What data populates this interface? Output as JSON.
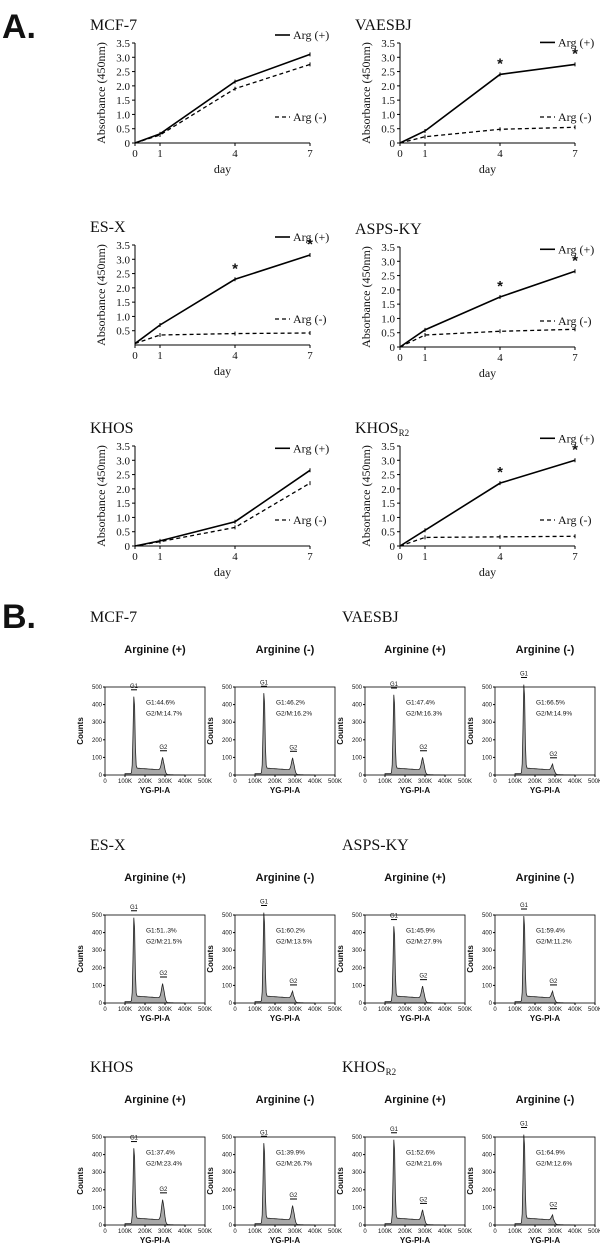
{
  "panel_a_label": "A.",
  "panel_b_label": "B.",
  "chart_data": [
    {
      "type": "line",
      "title": "MCF-7",
      "xlabel": "day",
      "ylabel": "Absorbance (450nm)",
      "x": [
        0,
        1,
        4,
        7
      ],
      "xticks": [
        "0",
        "1",
        "4",
        "7"
      ],
      "ylim": [
        0,
        3.5
      ],
      "yticks": [
        "0",
        "0.5",
        "1.0",
        "1.5",
        "2.0",
        "2.5",
        "3.0",
        "3.5"
      ],
      "series": [
        {
          "name": "Arg (+)",
          "style": "solid",
          "values": [
            0,
            0.32,
            2.15,
            3.1
          ]
        },
        {
          "name": "Arg (-)",
          "style": "dashed",
          "values": [
            0,
            0.28,
            1.9,
            2.75
          ]
        }
      ],
      "significant_days": []
    },
    {
      "type": "line",
      "title": "VAESBJ",
      "xlabel": "day",
      "ylabel": "Absorbance (450nm)",
      "x": [
        0,
        1,
        4,
        7
      ],
      "xticks": [
        "0",
        "1",
        "4",
        "7"
      ],
      "ylim": [
        0,
        3.5
      ],
      "yticks": [
        "0",
        "0.5",
        "1.0",
        "1.5",
        "2.0",
        "2.5",
        "3.0",
        "3.5"
      ],
      "series": [
        {
          "name": "Arg (+)",
          "style": "solid",
          "values": [
            0,
            0.42,
            2.4,
            2.75
          ]
        },
        {
          "name": "Arg (-)",
          "style": "dashed",
          "values": [
            0,
            0.22,
            0.48,
            0.55
          ]
        }
      ],
      "significant_days": [
        4,
        7
      ],
      "significance_mark": "*"
    },
    {
      "type": "line",
      "title": "ES-X",
      "xlabel": "day",
      "ylabel": "Absorbance (450nm)",
      "x": [
        0,
        1,
        4,
        7
      ],
      "xticks": [
        "0",
        "1",
        "4",
        "7"
      ],
      "ylim": [
        0,
        3.5
      ],
      "yticks": [
        "0.5",
        "1.0",
        "1.5",
        "2.0",
        "2.5",
        "3.0",
        "3.5"
      ],
      "series": [
        {
          "name": "Arg (+)",
          "style": "solid",
          "values": [
            0.05,
            0.7,
            2.3,
            3.15
          ]
        },
        {
          "name": "Arg (-)",
          "style": "dashed",
          "values": [
            0.05,
            0.35,
            0.4,
            0.42
          ]
        }
      ],
      "significant_days": [
        4,
        7
      ],
      "significance_mark": "*"
    },
    {
      "type": "line",
      "title": "ASPS-KY",
      "xlabel": "day",
      "ylabel": "Absorbance (450nm)",
      "x": [
        0,
        1,
        4,
        7
      ],
      "xticks": [
        "0",
        "1",
        "4",
        "7"
      ],
      "ylim": [
        0,
        3.5
      ],
      "yticks": [
        "0",
        "0.5",
        "1.0",
        "1.5",
        "2.0",
        "2.5",
        "3.0",
        "3.5"
      ],
      "series": [
        {
          "name": "Arg (+)",
          "style": "solid",
          "values": [
            0,
            0.6,
            1.75,
            2.65
          ]
        },
        {
          "name": "Arg (-)",
          "style": "dashed",
          "values": [
            0,
            0.42,
            0.55,
            0.62
          ]
        }
      ],
      "significant_days": [
        4,
        7
      ],
      "significance_mark": "*"
    },
    {
      "type": "line",
      "title": "KHOS",
      "xlabel": "day",
      "ylabel": "Absorbance (450nm)",
      "x": [
        0,
        1,
        4,
        7
      ],
      "xticks": [
        "0",
        "1",
        "4",
        "7"
      ],
      "ylim": [
        0,
        3.5
      ],
      "yticks": [
        "0",
        "0.5",
        "1.0",
        "1.5",
        "2.0",
        "2.5",
        "3.0",
        "3.5"
      ],
      "series": [
        {
          "name": "Arg (+)",
          "style": "solid",
          "values": [
            0,
            0.18,
            0.85,
            2.65
          ]
        },
        {
          "name": "Arg (-)",
          "style": "dashed",
          "values": [
            0,
            0.15,
            0.65,
            2.2
          ]
        }
      ],
      "significant_days": []
    },
    {
      "type": "line",
      "title": "KHOS",
      "title_sub": "R2",
      "xlabel": "day",
      "ylabel": "Absorbance (450nm)",
      "x": [
        0,
        1,
        4,
        7
      ],
      "xticks": [
        "0",
        "1",
        "4",
        "7"
      ],
      "ylim": [
        0,
        3.5
      ],
      "yticks": [
        "0",
        "0.5",
        "1.0",
        "1.5",
        "2.0",
        "2.5",
        "3.0",
        "3.5"
      ],
      "series": [
        {
          "name": "Arg (+)",
          "style": "solid",
          "values": [
            0,
            0.55,
            2.2,
            3.0
          ]
        },
        {
          "name": "Arg (-)",
          "style": "dashed",
          "values": [
            0,
            0.3,
            0.32,
            0.34
          ]
        }
      ],
      "significant_days": [
        4,
        7
      ],
      "significance_mark": "*"
    }
  ],
  "histograms": {
    "xlabel": "YG-PI-A",
    "ylabel": "Counts",
    "xticks": [
      "0",
      "100K",
      "200K",
      "300K",
      "400K",
      "500K"
    ],
    "yticks": [
      "0",
      "100",
      "200",
      "300",
      "400",
      "500"
    ],
    "g1_label": "G1",
    "g2_label": "G2",
    "groups": [
      {
        "cell": "MCF-7",
        "sub": "",
        "panels": [
          {
            "condition": "Arginine (+)",
            "g1": "G1:44.6%",
            "g2m": "G2/M:14.7%",
            "g1_peak": 450,
            "g2_peak": 75
          },
          {
            "condition": "Arginine (-)",
            "g1": "G1:46.2%",
            "g2m": "G2/M:16.2%",
            "g1_peak": 470,
            "g2_peak": 72
          }
        ]
      },
      {
        "cell": "VAESBJ",
        "sub": "",
        "panels": [
          {
            "condition": "Arginine (+)",
            "g1": "G1:47.4%",
            "g2m": "G2/M:16.3%",
            "g1_peak": 460,
            "g2_peak": 75
          },
          {
            "condition": "Arginine (-)",
            "g1": "G1:66.5%",
            "g2m": "G2/M:14.9%",
            "g1_peak": 520,
            "g2_peak": 35
          }
        ]
      },
      {
        "cell": "ES-X",
        "sub": "",
        "panels": [
          {
            "condition": "Arginine (+)",
            "g1": "G1:51..3%",
            "g2m": "G2/M:21.5%",
            "g1_peak": 490,
            "g2_peak": 85
          },
          {
            "condition": "Arginine (-)",
            "g1": "G1:60.2%",
            "g2m": "G2/M:13.5%",
            "g1_peak": 520,
            "g2_peak": 40
          }
        ]
      },
      {
        "cell": "ASPS-KY",
        "sub": "",
        "panels": [
          {
            "condition": "Arginine (+)",
            "g1": "G1:45.9%",
            "g2m": "G2/M:27.9%",
            "g1_peak": 440,
            "g2_peak": 70
          },
          {
            "condition": "Arginine (-)",
            "g1": "G1:59.4%",
            "g2m": "G2/M:11.2%",
            "g1_peak": 500,
            "g2_peak": 40
          }
        ]
      },
      {
        "cell": "KHOS",
        "sub": "",
        "panels": [
          {
            "condition": "Arginine (+)",
            "g1": "G1:37.4%",
            "g2m": "G2/M:23.4%",
            "g1_peak": 440,
            "g2_peak": 120
          },
          {
            "condition": "Arginine (-)",
            "g1": "G1:39.9%",
            "g2m": "G2/M:26.7%",
            "g1_peak": 470,
            "g2_peak": 85
          }
        ]
      },
      {
        "cell": "KHOS",
        "sub": "R2",
        "panels": [
          {
            "condition": "Arginine (+)",
            "g1": "G1:52.6%",
            "g2m": "G2/M:21.6%",
            "g1_peak": 490,
            "g2_peak": 60
          },
          {
            "condition": "Arginine (-)",
            "g1": "G1:64.9%",
            "g2m": "G2/M:12.6%",
            "g1_peak": 520,
            "g2_peak": 30
          }
        ]
      }
    ]
  }
}
